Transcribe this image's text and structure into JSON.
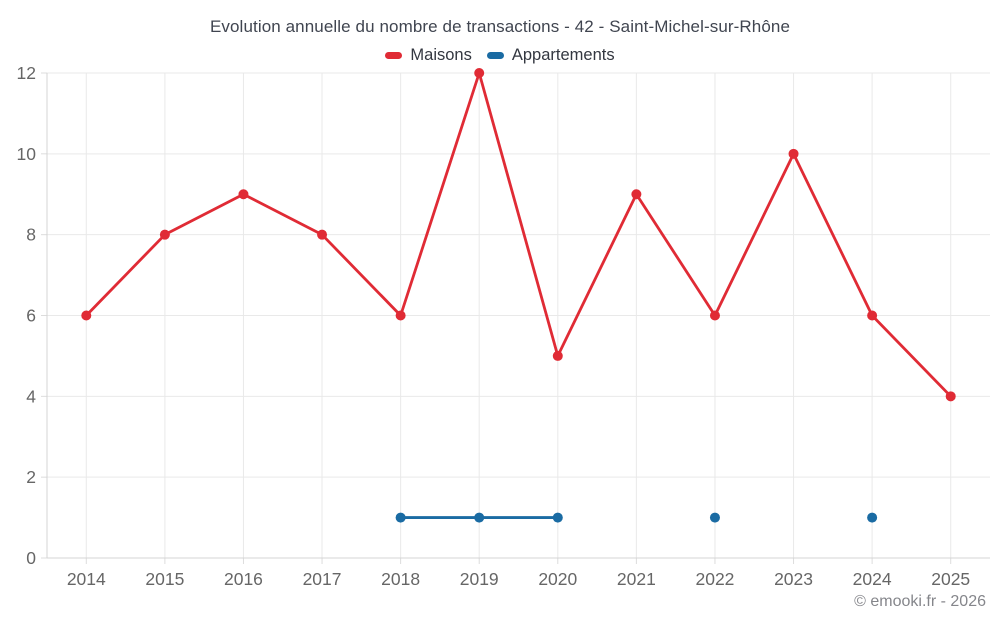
{
  "chart_data": {
    "type": "line",
    "title": "Evolution annuelle du nombre de transactions - 42 - Saint-Michel-sur-Rhône",
    "categories": [
      "2014",
      "2015",
      "2016",
      "2017",
      "2018",
      "2019",
      "2020",
      "2021",
      "2022",
      "2023",
      "2024",
      "2025"
    ],
    "series": [
      {
        "name": "Maisons",
        "color": "#e02b35",
        "values": [
          6,
          8,
          9,
          8,
          6,
          12,
          5,
          9,
          6,
          10,
          6,
          4
        ]
      },
      {
        "name": "Appartements",
        "color": "#1a6ba3",
        "values": [
          null,
          null,
          null,
          null,
          1,
          1,
          1,
          null,
          1,
          null,
          1,
          null
        ]
      }
    ],
    "xlabel": "",
    "ylabel": "",
    "ylim": [
      0,
      12
    ],
    "yticks": [
      0,
      2,
      4,
      6,
      8,
      10,
      12
    ],
    "grid": true,
    "legend_position": "top"
  },
  "footer": {
    "copyright": "© emooki.fr - 2026"
  },
  "colors": {
    "grid": "#e9e9e9",
    "axis": "#d4d4d4",
    "tick": "#dcdcdc",
    "tick_label": "#666666",
    "title_text": "#404550",
    "legend_text": "#333740",
    "copyright_text": "#85868b"
  }
}
